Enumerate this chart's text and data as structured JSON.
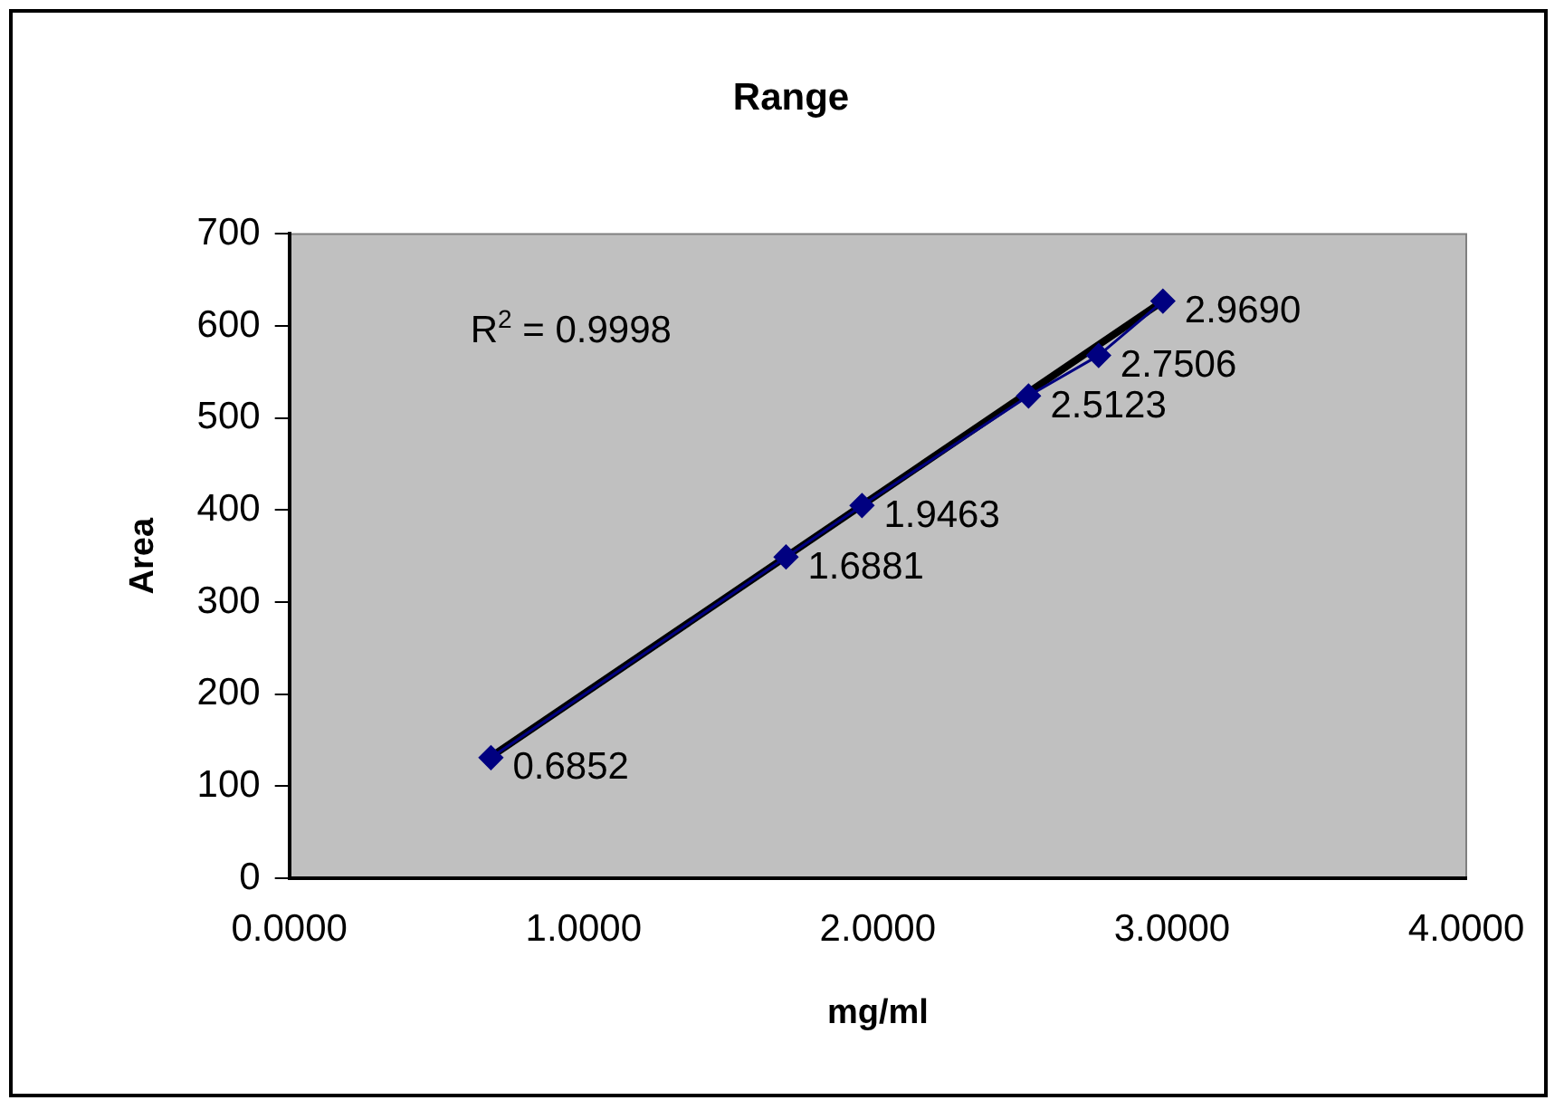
{
  "chart_data": {
    "type": "line",
    "title": "Range",
    "xlabel": "mg/ml",
    "ylabel": "Area",
    "annotations": [
      "R$^{2}$ = 0.9998",
      {
        "text": "0.6852",
        "x": 0.6852,
        "y": 131
      },
      {
        "text": "1.6881",
        "x": 1.6881,
        "y": 349
      },
      {
        "text": "1.9463",
        "x": 1.9463,
        "y": 405
      },
      {
        "text": "2.5123",
        "x": 2.5123,
        "y": 524
      },
      {
        "text": "2.7506",
        "x": 2.7506,
        "y": 568
      },
      {
        "text": "2.9690",
        "x": 2.969,
        "y": 627
      }
    ],
    "xlim": [
      0,
      4
    ],
    "xticks": [
      {
        "value": 0,
        "label": "0.0000"
      },
      {
        "value": 1,
        "label": "1.0000"
      },
      {
        "value": 2,
        "label": "2.0000"
      },
      {
        "value": 3,
        "label": "3.0000"
      },
      {
        "value": 4,
        "label": "4.0000"
      }
    ],
    "ylim": [
      0,
      700
    ],
    "yticks": [
      0,
      100,
      200,
      300,
      400,
      500,
      600,
      700
    ],
    "grid": false,
    "legend": false,
    "series": [
      {
        "color": "#000080",
        "marker": "diamond",
        "x": [
          0.6852,
          1.6881,
          1.9463,
          2.5123,
          2.7506,
          2.969
        ],
        "values": [
          131,
          349,
          405,
          524,
          568,
          627
        ]
      },
      {
        "type": "line",
        "color": "#000000",
        "marker": "none",
        "x": [
          0.6852,
          2.969
        ],
        "values": [
          132,
          627
        ]
      }
    ]
  }
}
